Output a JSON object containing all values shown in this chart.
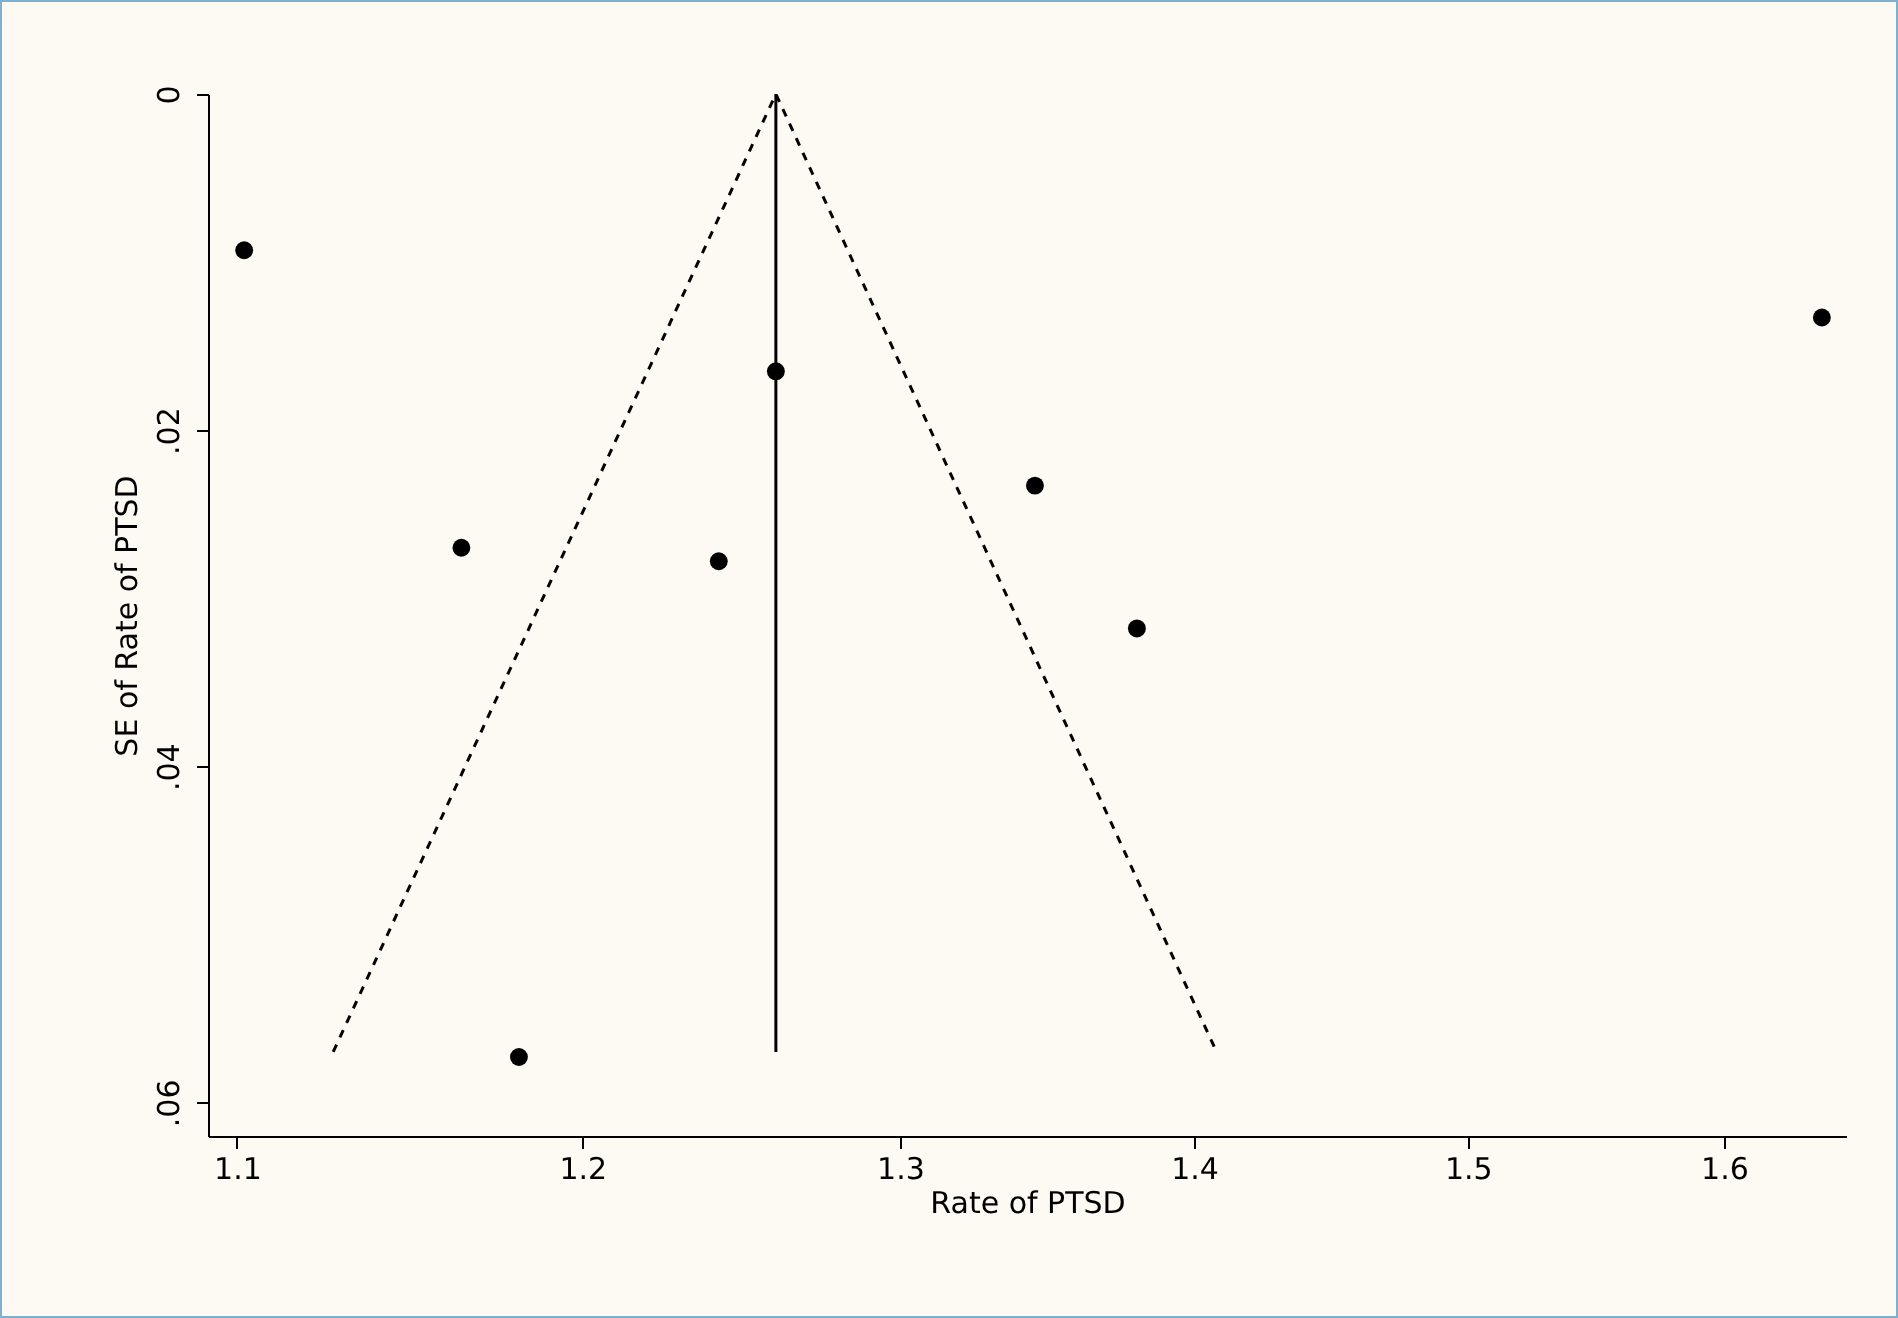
{
  "chart_data": {
    "type": "scatter",
    "xlabel": "Rate of PTSD",
    "ylabel": "SE of Rate of PTSD",
    "log": "x",
    "xlim": [
      1.092,
      1.65
    ],
    "xticks": [
      1.1,
      1.2,
      1.3,
      1.4,
      1.5,
      1.6
    ],
    "ylim": [
      0.062,
      0
    ],
    "yticks": [
      {
        "value": 0,
        "label": "0"
      },
      {
        "value": 0.02,
        "label": ".02"
      },
      {
        "value": 0.04,
        "label": ".04"
      },
      {
        "value": 0.06,
        "label": ".06"
      }
    ],
    "grid": false,
    "series": [
      {
        "color": "#000000",
        "marker": "circle",
        "x": [
          1.102,
          1.164,
          1.242,
          1.181,
          1.26,
          1.345,
          1.38,
          1.64
        ],
        "values": [
          0.0093,
          0.027,
          0.0278,
          0.0573,
          0.0165,
          0.0233,
          0.0318,
          0.0133
        ]
      },
      {
        "type": "line",
        "color": "#000000",
        "line_style": "dashed",
        "x": [
          1.127,
          1.26,
          1.408
        ],
        "values": [
          0.057,
          0,
          0.057
        ]
      },
      {
        "type": "line",
        "color": "#000000",
        "line_style": "solid",
        "x": [
          1.26,
          1.26
        ],
        "values": [
          0,
          0.057
        ]
      }
    ]
  }
}
